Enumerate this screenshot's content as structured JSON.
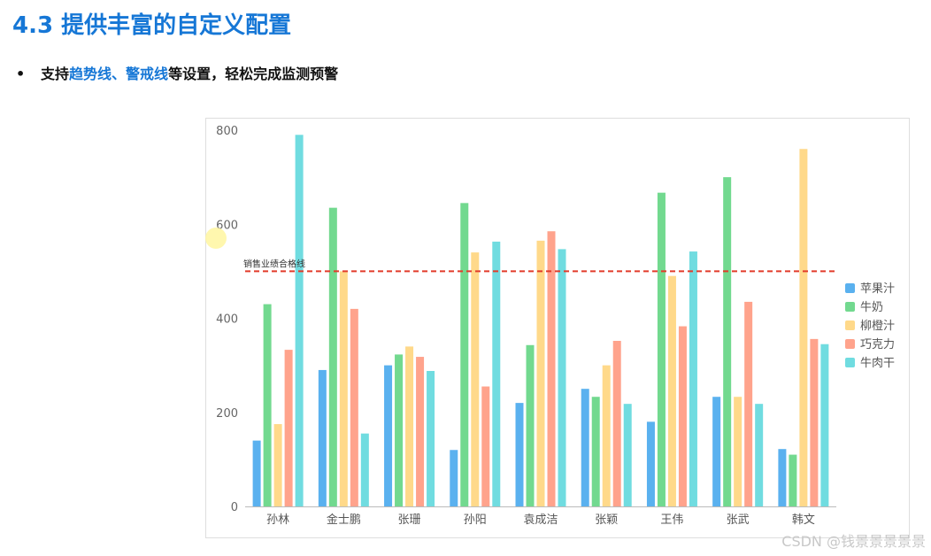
{
  "page": {
    "title": "4.3 提供丰富的自定义配置",
    "bullet": {
      "marker": "•",
      "prefix": "支持",
      "highlight_1": "趋势线",
      "sep": "、",
      "highlight_2": "警戒线",
      "suffix": "等设置，轻松完成监测预警"
    },
    "watermark": "CSDN @钱景景景景景"
  },
  "colors": {
    "title_blue": "#1677d6",
    "series": [
      "#5ab1ef",
      "#72d98f",
      "#ffd98a",
      "#ffa38c",
      "#70dce0"
    ],
    "warning_line": "#e23b2a"
  },
  "chart_data": {
    "type": "bar",
    "categories": [
      "孙林",
      "金士鹏",
      "张珊",
      "孙阳",
      "袁成洁",
      "张颖",
      "王伟",
      "张武",
      "韩文"
    ],
    "series": [
      {
        "name": "苹果汁",
        "values": [
          140,
          290,
          300,
          120,
          220,
          250,
          180,
          233,
          122
        ]
      },
      {
        "name": "牛奶",
        "values": [
          430,
          635,
          323,
          645,
          343,
          233,
          667,
          700,
          110
        ]
      },
      {
        "name": "柳橙汁",
        "values": [
          175,
          500,
          340,
          540,
          565,
          300,
          490,
          233,
          760
        ]
      },
      {
        "name": "巧克力",
        "values": [
          333,
          420,
          318,
          255,
          585,
          352,
          383,
          435,
          356
        ]
      },
      {
        "name": "牛肉干",
        "values": [
          790,
          155,
          288,
          563,
          547,
          218,
          542,
          218,
          345
        ]
      }
    ],
    "ylim": [
      0,
      800
    ],
    "yticks": [
      0,
      200,
      400,
      600,
      800
    ],
    "grid": false,
    "legend": "right",
    "warning_line": {
      "label": "销售业绩合格线",
      "value": 500
    }
  }
}
